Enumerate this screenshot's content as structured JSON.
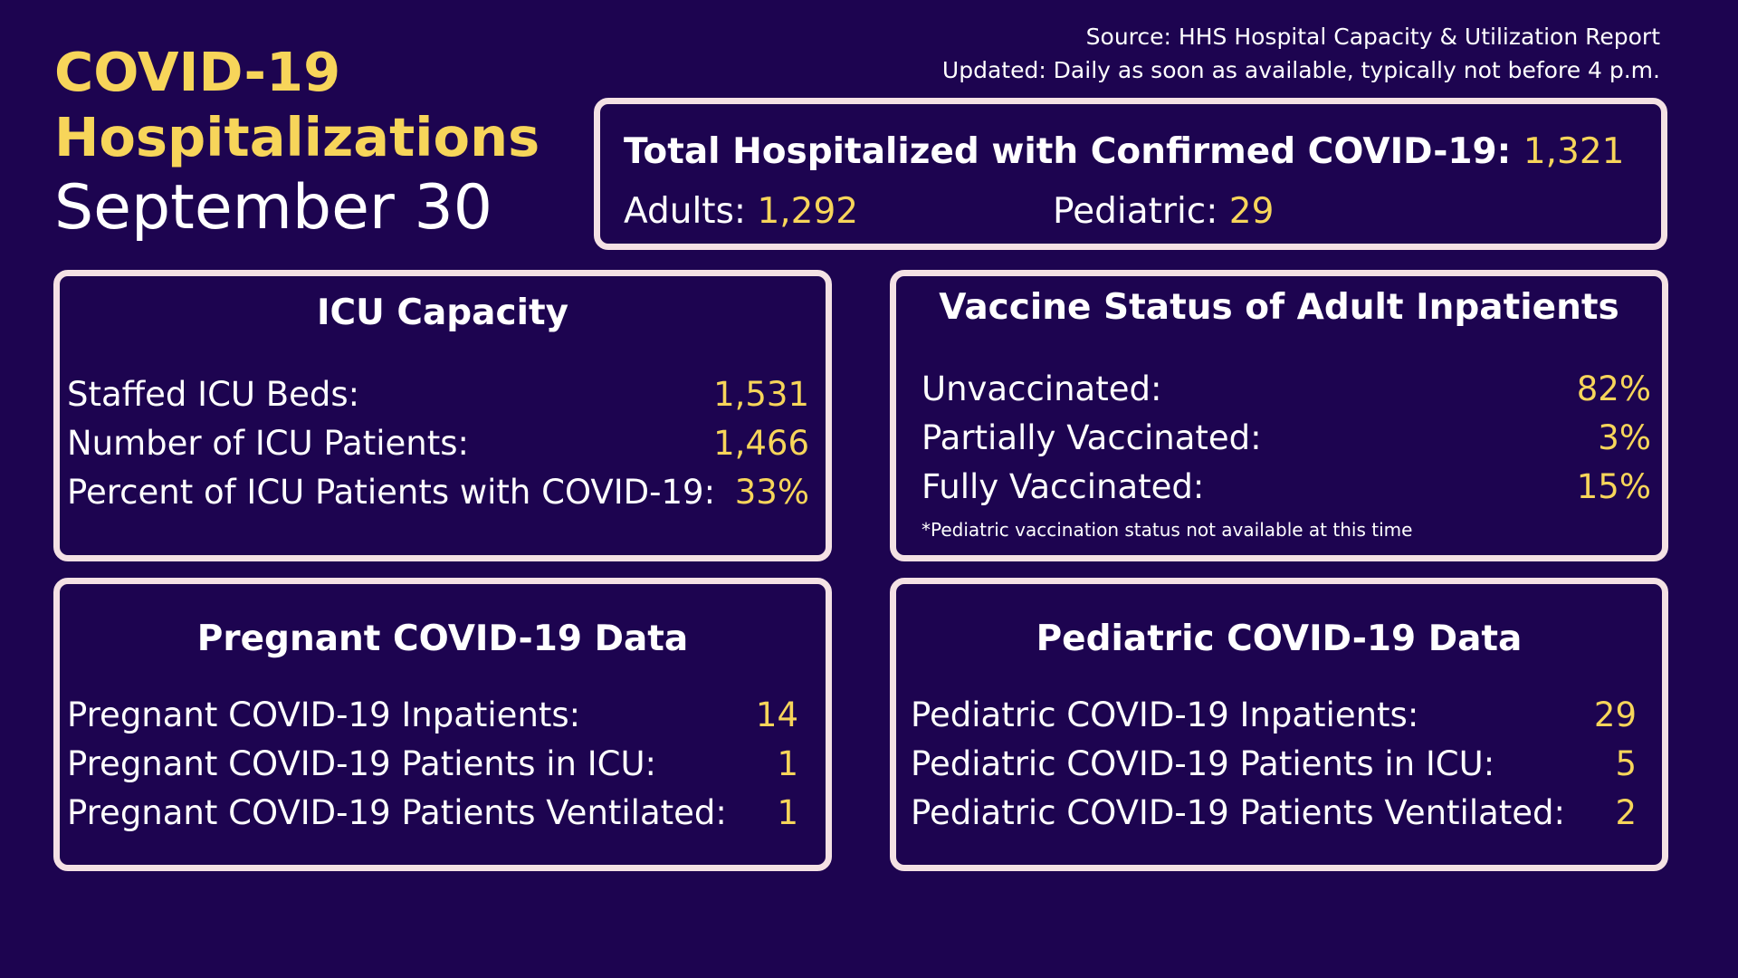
{
  "header": {
    "title_line1": "COVID-19",
    "title_line2": "Hospitalizations",
    "date": "September 30"
  },
  "source": {
    "source_line": "Source: HHS Hospital Capacity & Utilization Report",
    "updated_line": "Updated: Daily as soon as available, typically not before 4 p.m."
  },
  "total": {
    "label": "Total Hospitalized with Confirmed COVID-19:",
    "value": "1,321",
    "adults_label": "Adults:",
    "adults_value": "1,292",
    "pediatric_label": "Pediatric:",
    "pediatric_value": "29"
  },
  "icu": {
    "title": "ICU Capacity",
    "rows": [
      {
        "label": "Staffed ICU Beds:",
        "value": "1,531"
      },
      {
        "label": "Number of ICU Patients:",
        "value": "1,466"
      },
      {
        "label": "Percent of ICU Patients with COVID-19:",
        "value": "33%"
      }
    ]
  },
  "vaccine": {
    "title": "Vaccine Status of Adult Inpatients",
    "rows": [
      {
        "label": "Unvaccinated:",
        "value": "82%"
      },
      {
        "label": "Partially Vaccinated:",
        "value": "3%"
      },
      {
        "label": "Fully Vaccinated:",
        "value": "15%"
      }
    ],
    "note": "*Pediatric vaccination status not available at this time"
  },
  "pregnant": {
    "title": "Pregnant COVID-19 Data",
    "rows": [
      {
        "label": "Pregnant COVID-19 Inpatients:",
        "value": "14"
      },
      {
        "label": "Pregnant COVID-19 Patients in ICU:",
        "value": "1"
      },
      {
        "label": "Pregnant COVID-19 Patients Ventilated:",
        "value": "1"
      }
    ]
  },
  "pediatric": {
    "title": "Pediatric COVID-19 Data",
    "rows": [
      {
        "label": "Pediatric COVID-19 Inpatients:",
        "value": "29"
      },
      {
        "label": "Pediatric COVID-19 Patients in ICU:",
        "value": "5"
      },
      {
        "label": "Pediatric COVID-19 Patients Ventilated:",
        "value": "2"
      }
    ]
  },
  "colors": {
    "background": "#1d0450",
    "accent": "#f7d55a",
    "border": "#f4e1e4",
    "text": "#ffffff"
  }
}
